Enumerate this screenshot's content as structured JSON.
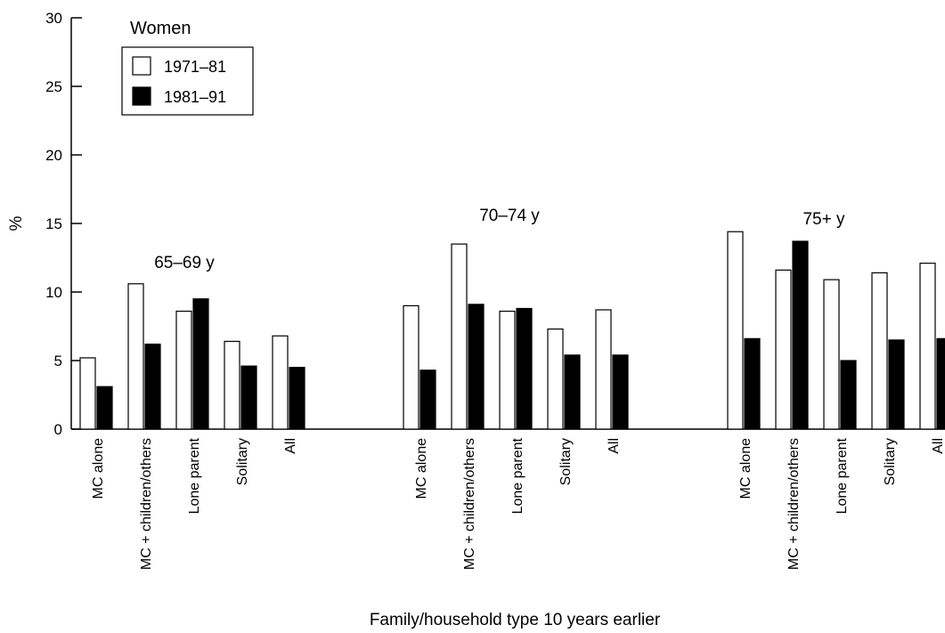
{
  "chart_data": {
    "type": "bar",
    "title": "",
    "xlabel": "Family/household type 10 years earlier",
    "ylabel": "%",
    "ylim": [
      0,
      30
    ],
    "yticks": [
      0,
      5,
      10,
      15,
      20,
      25,
      30
    ],
    "legend": {
      "title": "Women",
      "placement": "top-left",
      "entries": [
        {
          "label": "1971–81",
          "fill": "#ffffff"
        },
        {
          "label": "1981–91",
          "fill": "#000000"
        }
      ]
    },
    "groups": [
      {
        "label": "65–69 y",
        "categories": [
          "MC alone",
          "MC + children/others",
          "Lone parent",
          "Solitary",
          "All"
        ],
        "series": [
          {
            "name": "1971–81",
            "values": [
              5.2,
              10.6,
              8.6,
              6.4,
              6.8
            ]
          },
          {
            "name": "1981–91",
            "values": [
              3.1,
              6.2,
              9.5,
              4.6,
              4.5
            ]
          }
        ]
      },
      {
        "label": "70–74 y",
        "categories": [
          "MC alone",
          "MC + children/others",
          "Lone parent",
          "Solitary",
          "All"
        ],
        "series": [
          {
            "name": "1971–81",
            "values": [
              9.0,
              13.5,
              8.6,
              7.3,
              8.7
            ]
          },
          {
            "name": "1981–91",
            "values": [
              4.3,
              9.1,
              8.8,
              5.4,
              5.4
            ]
          }
        ]
      },
      {
        "label": "75+ y",
        "categories": [
          "MC alone",
          "MC + children/others",
          "Lone parent",
          "Solitary",
          "All"
        ],
        "series": [
          {
            "name": "1971–81",
            "values": [
              14.4,
              11.6,
              10.9,
              11.4,
              12.1
            ]
          },
          {
            "name": "1981–91",
            "values": [
              6.6,
              13.7,
              5.0,
              6.5,
              6.6
            ]
          }
        ]
      }
    ],
    "colors": {
      "series_1971_81": "#ffffff",
      "series_1981_91": "#000000",
      "stroke": "#000000"
    },
    "grid": false
  }
}
